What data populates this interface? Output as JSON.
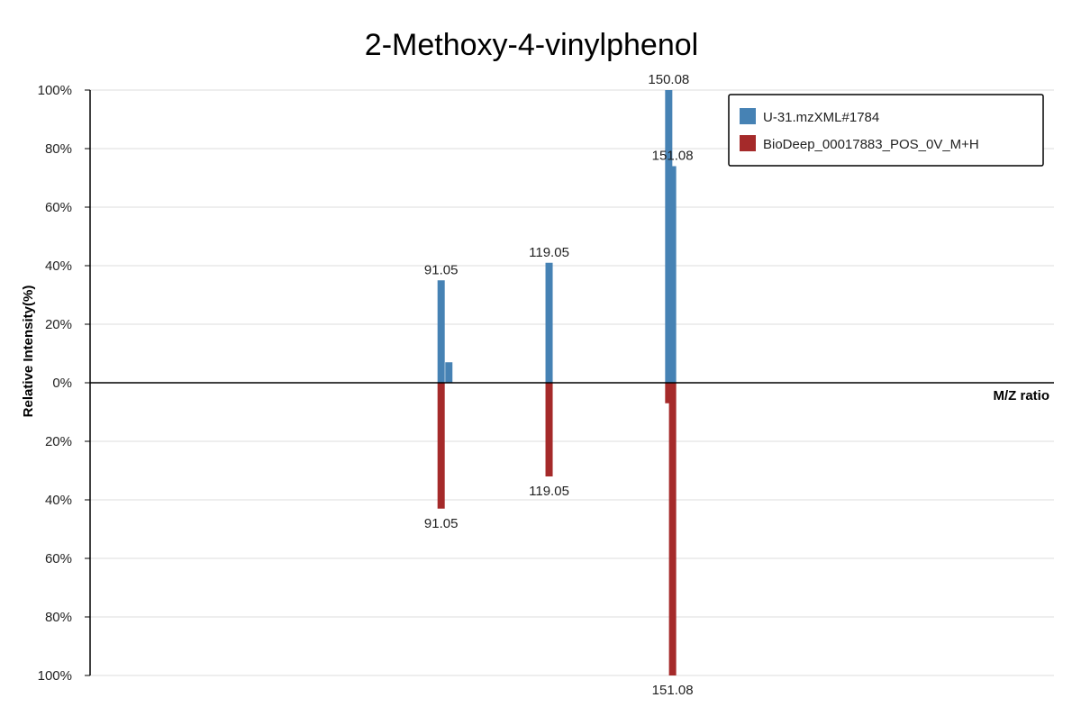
{
  "chart_data": {
    "type": "bar",
    "title": "2-Methoxy-4-vinylphenol",
    "xlabel": "M/Z ratio",
    "ylabel": "Relative Intensity(%)",
    "ylim": [
      -100,
      100
    ],
    "xlim": [
      0,
      250
    ],
    "y_ticks": [
      "100%",
      "80%",
      "60%",
      "40%",
      "20%",
      "0%",
      "20%",
      "40%",
      "60%",
      "80%",
      "100%"
    ],
    "grid": true,
    "legend_position": "top-right",
    "series": [
      {
        "name": "U-31.mzXML#1784",
        "color": "#4682b4",
        "direction": "up",
        "peaks": [
          {
            "mz": 91.05,
            "intensity": 35,
            "label": "91.05"
          },
          {
            "mz": 93.05,
            "intensity": 7,
            "label": ""
          },
          {
            "mz": 119.05,
            "intensity": 41,
            "label": "119.05"
          },
          {
            "mz": 150.08,
            "intensity": 100,
            "label": "150.08"
          },
          {
            "mz": 151.08,
            "intensity": 74,
            "label": "151.08"
          }
        ]
      },
      {
        "name": "BioDeep_00017883_POS_0V_M+H",
        "color": "#a52a2a",
        "direction": "down",
        "peaks": [
          {
            "mz": 91.05,
            "intensity": 43,
            "label": "91.05"
          },
          {
            "mz": 119.05,
            "intensity": 32,
            "label": "119.05"
          },
          {
            "mz": 150.08,
            "intensity": 7,
            "label": ""
          },
          {
            "mz": 151.08,
            "intensity": 100,
            "label": "151.08"
          }
        ]
      }
    ]
  }
}
